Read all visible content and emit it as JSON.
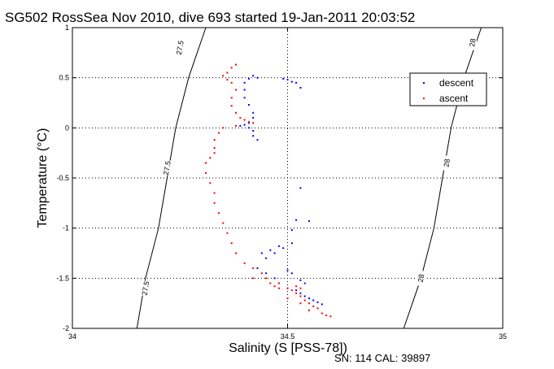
{
  "chart_data": {
    "type": "scatter",
    "title": "SG502 RossSea Nov 2010, dive 693 started 19-Jan-2011 20:03:52",
    "xlabel": "Salinity (S [PSS-78])",
    "ylabel": "Temperature (°C)",
    "xlim": [
      34,
      35
    ],
    "ylim": [
      -2,
      1
    ],
    "x_ticks": [
      "34",
      "34.5",
      "35"
    ],
    "y_ticks": [
      "-2",
      "-1.5",
      "-1",
      "-0.5",
      "0",
      "0.5",
      "1"
    ],
    "grid": true,
    "legend_position": "top-right",
    "footer": "SN: 114  CAL: 39897",
    "density_contours": [
      {
        "label": "27.5",
        "label_positions": [
          [
            34.25,
            0.8
          ],
          [
            34.22,
            -0.4
          ],
          [
            34.17,
            -1.6
          ]
        ],
        "points": [
          [
            34.31,
            1.0
          ],
          [
            34.27,
            0.5
          ],
          [
            34.24,
            0.0
          ],
          [
            34.22,
            -0.5
          ],
          [
            34.2,
            -1.0
          ],
          [
            34.17,
            -1.5
          ],
          [
            34.15,
            -2.0
          ]
        ]
      },
      {
        "label": "28",
        "label_positions": [
          [
            34.93,
            0.85
          ],
          [
            34.87,
            -0.35
          ],
          [
            34.81,
            -1.5
          ]
        ],
        "points": [
          [
            34.95,
            1.0
          ],
          [
            34.91,
            0.5
          ],
          [
            34.88,
            0.0
          ],
          [
            34.86,
            -0.5
          ],
          [
            34.84,
            -1.0
          ],
          [
            34.81,
            -1.5
          ],
          [
            34.77,
            -2.0
          ]
        ]
      }
    ],
    "series": [
      {
        "name": "descent",
        "color": "#0000ff",
        "points": [
          [
            34.5,
            0.48
          ],
          [
            34.51,
            0.46
          ],
          [
            34.52,
            0.45
          ],
          [
            34.49,
            0.49
          ],
          [
            34.53,
            0.4
          ],
          [
            34.43,
            0.5
          ],
          [
            34.42,
            0.52
          ],
          [
            34.41,
            0.49
          ],
          [
            34.4,
            0.45
          ],
          [
            34.4,
            0.38
          ],
          [
            34.4,
            0.3
          ],
          [
            34.41,
            0.23
          ],
          [
            34.42,
            0.15
          ],
          [
            34.42,
            0.1
          ],
          [
            34.41,
            0.05
          ],
          [
            34.4,
            0.03
          ],
          [
            34.39,
            0.02
          ],
          [
            34.41,
            0.0
          ],
          [
            34.42,
            -0.03
          ],
          [
            34.42,
            -0.08
          ],
          [
            34.43,
            -0.12
          ],
          [
            34.53,
            -0.6
          ],
          [
            34.52,
            -0.92
          ],
          [
            34.55,
            -0.93
          ],
          [
            34.51,
            -1.02
          ],
          [
            34.48,
            -1.18
          ],
          [
            34.46,
            -1.22
          ],
          [
            34.44,
            -1.25
          ],
          [
            34.45,
            -1.3
          ],
          [
            34.47,
            -1.25
          ],
          [
            34.49,
            -1.2
          ],
          [
            34.51,
            -1.15
          ],
          [
            34.43,
            -1.4
          ],
          [
            34.45,
            -1.45
          ],
          [
            34.47,
            -1.5
          ],
          [
            34.48,
            -1.55
          ],
          [
            34.5,
            -1.6
          ],
          [
            34.52,
            -1.62
          ],
          [
            34.53,
            -1.65
          ],
          [
            34.54,
            -1.68
          ],
          [
            34.55,
            -1.7
          ],
          [
            34.56,
            -1.72
          ],
          [
            34.57,
            -1.74
          ],
          [
            34.58,
            -1.76
          ],
          [
            34.5,
            -1.42
          ],
          [
            34.51,
            -1.45
          ],
          [
            34.53,
            -1.52
          ],
          [
            34.54,
            -1.55
          ]
        ]
      },
      {
        "name": "ascent",
        "color": "#ff0000",
        "points": [
          [
            34.38,
            0.63
          ],
          [
            34.37,
            0.6
          ],
          [
            34.36,
            0.55
          ],
          [
            34.35,
            0.52
          ],
          [
            34.36,
            0.48
          ],
          [
            34.37,
            0.45
          ],
          [
            34.38,
            0.38
          ],
          [
            34.37,
            0.3
          ],
          [
            34.37,
            0.22
          ],
          [
            34.38,
            0.15
          ],
          [
            34.39,
            0.1
          ],
          [
            34.4,
            0.08
          ],
          [
            34.41,
            0.06
          ],
          [
            34.42,
            0.05
          ],
          [
            34.38,
            0.02
          ],
          [
            34.35,
            0.0
          ],
          [
            34.34,
            -0.05
          ],
          [
            34.33,
            -0.12
          ],
          [
            34.33,
            -0.2
          ],
          [
            34.33,
            -0.25
          ],
          [
            34.32,
            -0.3
          ],
          [
            34.31,
            -0.35
          ],
          [
            34.31,
            -0.45
          ],
          [
            34.32,
            -0.55
          ],
          [
            34.33,
            -0.65
          ],
          [
            34.33,
            -0.75
          ],
          [
            34.34,
            -0.85
          ],
          [
            34.35,
            -0.95
          ],
          [
            34.36,
            -1.05
          ],
          [
            34.37,
            -1.15
          ],
          [
            34.38,
            -1.25
          ],
          [
            34.4,
            -1.35
          ],
          [
            34.42,
            -1.4
          ],
          [
            34.44,
            -1.45
          ],
          [
            34.45,
            -1.5
          ],
          [
            34.46,
            -1.55
          ],
          [
            34.47,
            -1.58
          ],
          [
            34.48,
            -1.6
          ],
          [
            34.5,
            -1.6
          ],
          [
            34.52,
            -1.58
          ],
          [
            34.53,
            -1.6
          ],
          [
            34.51,
            -1.62
          ],
          [
            34.52,
            -1.65
          ],
          [
            34.53,
            -1.68
          ],
          [
            34.54,
            -1.72
          ],
          [
            34.55,
            -1.75
          ],
          [
            34.56,
            -1.78
          ],
          [
            34.57,
            -1.8
          ],
          [
            34.58,
            -1.85
          ],
          [
            34.59,
            -1.87
          ],
          [
            34.6,
            -1.88
          ],
          [
            34.55,
            -1.82
          ],
          [
            34.53,
            -1.75
          ],
          [
            34.5,
            -1.7
          ],
          [
            34.48,
            -1.55
          ],
          [
            34.42,
            -1.5
          ]
        ]
      }
    ]
  }
}
